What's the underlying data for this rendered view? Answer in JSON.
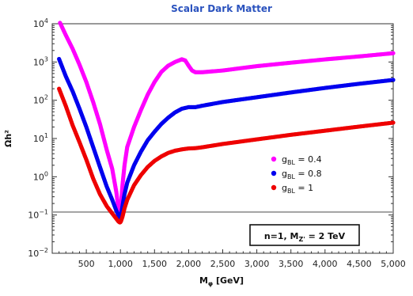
{
  "chart_data": {
    "type": "scatter",
    "title": "Scalar Dark Matter",
    "xlabel": "M",
    "xlabel_sub": "φ",
    "xlabel_unit": " [GeV]",
    "ylabel": "Ωh²",
    "xlim": [
      0,
      5000
    ],
    "ylim": [
      0.01,
      10000
    ],
    "yscale": "log",
    "grid": false,
    "legend_position": "right",
    "x_ticks": [
      500,
      1000,
      1500,
      2000,
      2500,
      3000,
      3500,
      4000,
      4500,
      5000
    ],
    "x_tick_labels": [
      "500",
      "1,000",
      "1,500",
      "2,000",
      "2,500",
      "3,000",
      "3,500",
      "4,000",
      "4,500",
      "5,000"
    ],
    "y_ticks": [
      {
        "value": 0.01,
        "base": "10",
        "exp": "−2"
      },
      {
        "value": 0.1,
        "base": "10",
        "exp": "−1"
      },
      {
        "value": 1,
        "base": "10",
        "exp": "0"
      },
      {
        "value": 10,
        "base": "10",
        "exp": "1"
      },
      {
        "value": 100,
        "base": "10",
        "exp": "2"
      },
      {
        "value": 1000,
        "base": "10",
        "exp": "3"
      },
      {
        "value": 10000,
        "base": "10",
        "exp": "4"
      }
    ],
    "reference_line": {
      "y": 0.12,
      "color": "#a0a0a0"
    },
    "annotation": {
      "text_main": "n=1, M",
      "text_sub": "Z'",
      "text_tail": " = 2 TeV"
    },
    "series": [
      {
        "name_main": "g",
        "name_sub": "BL",
        "name_tail": " = 0.4",
        "color": "#ff00ff",
        "x": [
          100,
          200,
          300,
          400,
          500,
          600,
          700,
          800,
          880,
          940,
          970,
          990,
          1000,
          1010,
          1030,
          1060,
          1100,
          1200,
          1300,
          1400,
          1500,
          1600,
          1700,
          1800,
          1900,
          1950,
          2000,
          2050,
          2100,
          2200,
          2500,
          3000,
          3500,
          4000,
          4500,
          5000
        ],
        "y": [
          12000,
          5000,
          2200,
          850,
          300,
          90,
          24,
          5,
          1.6,
          0.4,
          0.15,
          0.09,
          0.1,
          0.2,
          0.6,
          2,
          6,
          20,
          55,
          140,
          300,
          550,
          800,
          1000,
          1180,
          1100,
          800,
          600,
          540,
          540,
          600,
          780,
          960,
          1170,
          1400,
          1700
        ]
      },
      {
        "name_main": "g",
        "name_sub": "BL",
        "name_tail": " = 0.8",
        "color": "#0000ee",
        "x": [
          100,
          200,
          300,
          400,
          500,
          600,
          700,
          800,
          880,
          940,
          970,
          990,
          1000,
          1010,
          1030,
          1060,
          1100,
          1200,
          1300,
          1400,
          1500,
          1600,
          1700,
          1800,
          1900,
          2000,
          2100,
          2200,
          2500,
          3000,
          3500,
          4000,
          4500,
          5000
        ],
        "y": [
          1200,
          420,
          170,
          60,
          20,
          6,
          1.8,
          0.55,
          0.25,
          0.13,
          0.1,
          0.09,
          0.085,
          0.1,
          0.17,
          0.35,
          0.7,
          2,
          4.5,
          9,
          15,
          24,
          35,
          48,
          60,
          66,
          66,
          72,
          90,
          120,
          160,
          210,
          270,
          340
        ]
      },
      {
        "name_main": "g",
        "name_sub": "BL",
        "name_tail": " = 1",
        "color": "#ee0000",
        "x": [
          100,
          200,
          300,
          400,
          500,
          600,
          700,
          800,
          880,
          940,
          970,
          990,
          1000,
          1010,
          1030,
          1060,
          1100,
          1200,
          1300,
          1400,
          1500,
          1600,
          1700,
          1800,
          1900,
          2000,
          2100,
          2200,
          2500,
          3000,
          3500,
          4000,
          4500,
          5000
        ],
        "y": [
          200,
          70,
          22,
          8,
          2.8,
          0.9,
          0.35,
          0.17,
          0.11,
          0.08,
          0.068,
          0.064,
          0.065,
          0.07,
          0.09,
          0.15,
          0.25,
          0.6,
          1.1,
          1.8,
          2.6,
          3.4,
          4.2,
          4.8,
          5.2,
          5.5,
          5.6,
          5.9,
          7.2,
          9.5,
          12.5,
          16,
          20.5,
          26
        ]
      }
    ]
  }
}
